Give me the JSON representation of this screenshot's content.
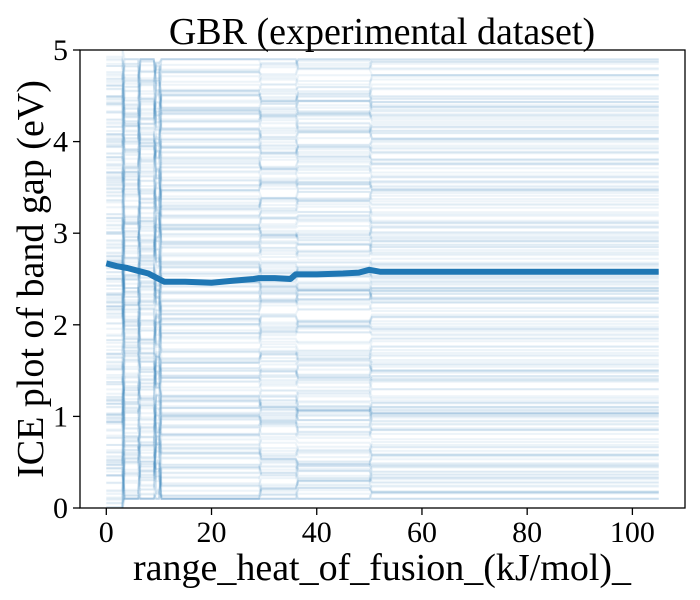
{
  "chart_data": {
    "type": "line",
    "title": "GBR (experimental dataset)",
    "xlabel": "range_heat_of_fusion_(kJ/mol)_",
    "ylabel": "ICE plot of band gap (eV)",
    "xlim": [
      -5,
      110
    ],
    "ylim": [
      0,
      5
    ],
    "xticks": [
      0,
      20,
      40,
      60,
      80,
      100
    ],
    "yticks": [
      0,
      1,
      2,
      3,
      4,
      5
    ],
    "grid": false,
    "colors": {
      "ice": "#1f77b4",
      "average": "#1f77b4"
    },
    "ice_lines": {
      "count": 260,
      "x_range": [
        0,
        105
      ],
      "y_range": [
        0.1,
        4.9
      ],
      "step_x": [
        10,
        29,
        36,
        50
      ],
      "opacity": 0.08
    },
    "average_series": {
      "name": "average",
      "x": [
        0,
        2,
        4,
        6,
        8,
        9,
        10,
        11,
        12,
        15,
        20,
        24,
        26,
        28,
        29,
        32,
        35,
        36,
        40,
        45,
        48,
        50,
        52,
        60,
        80,
        105
      ],
      "y": [
        2.67,
        2.64,
        2.62,
        2.59,
        2.56,
        2.53,
        2.5,
        2.47,
        2.47,
        2.47,
        2.46,
        2.48,
        2.49,
        2.5,
        2.51,
        2.51,
        2.5,
        2.55,
        2.55,
        2.56,
        2.57,
        2.6,
        2.58,
        2.58,
        2.58,
        2.58
      ]
    }
  }
}
